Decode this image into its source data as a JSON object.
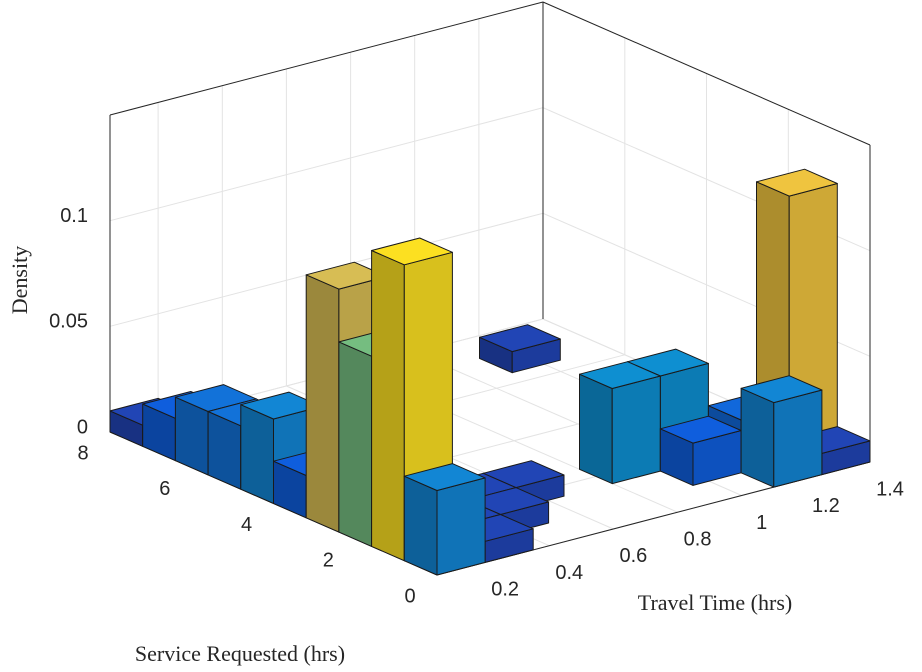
{
  "chart_data": {
    "type": "bar3",
    "zlabel": "Density",
    "xlabel": "Travel Time (hrs)",
    "ylabel": "Service Requested (hrs)",
    "xbins": [
      0.05,
      0.2,
      0.35,
      0.5,
      0.65,
      0.8,
      0.95,
      1.1,
      1.25,
      1.4
    ],
    "ybins": [
      0,
      0.8,
      1.6,
      2.4,
      3.2,
      4,
      4.8,
      5.6,
      6.4,
      7.2,
      8
    ],
    "values": [
      [
        0.04,
        0.01,
        0,
        0,
        0,
        0,
        0,
        0.04,
        0.01
      ],
      [
        0.14,
        0.01,
        0.01,
        0,
        0,
        0,
        0.02,
        0.025,
        0.125
      ],
      [
        0.09,
        0.02,
        0.01,
        0.01,
        0,
        0.045,
        0.045,
        0,
        0
      ],
      [
        0.115,
        0,
        0,
        0,
        0,
        0,
        0,
        0,
        0
      ],
      [
        0.02,
        0,
        0,
        0,
        0,
        0,
        0,
        0,
        0
      ],
      [
        0.04,
        0,
        0,
        0,
        0,
        0,
        0,
        0,
        0
      ],
      [
        0.03,
        0,
        0,
        0,
        0,
        0,
        0,
        0,
        0
      ],
      [
        0.03,
        0,
        0,
        0,
        0,
        0,
        0,
        0,
        0
      ],
      [
        0.02,
        0,
        0,
        0,
        0,
        0,
        0,
        0.01,
        0
      ],
      [
        0.01,
        0,
        0,
        0,
        0,
        0,
        0,
        0,
        0
      ]
    ],
    "xlim": [
      0.05,
      1.4
    ],
    "ylim": [
      0,
      8
    ],
    "zlim": [
      0,
      0.15
    ],
    "xticks": [
      0.2,
      0.4,
      0.6,
      0.8,
      1,
      1.2,
      1.4
    ],
    "yticks": [
      0,
      2,
      4,
      6,
      8
    ],
    "zticks": [
      0,
      0.05,
      0.1
    ],
    "grid": true,
    "colormap": "parula"
  }
}
